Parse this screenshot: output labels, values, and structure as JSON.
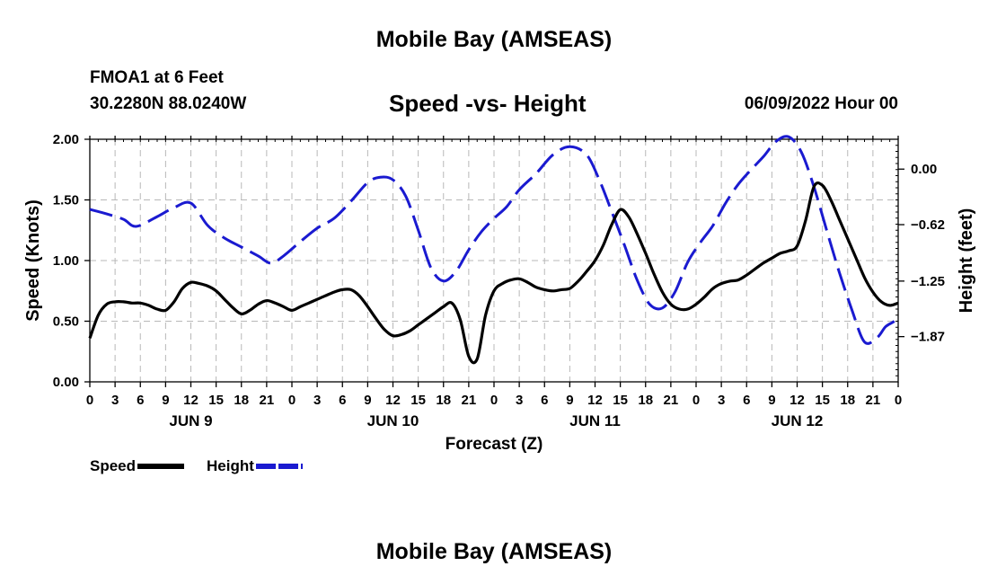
{
  "chart_data": {
    "type": "line",
    "title": "Speed -vs- Height",
    "page_title": "Mobile Bay (AMSEAS)",
    "bottom_title": "Mobile Bay (AMSEAS)",
    "station": "FMOA1 at 6 Feet",
    "coordinates": "30.2280N  88.0240W",
    "run_time": "06/09/2022 Hour 00",
    "xlabel": "Forecast (Z)",
    "ylabel": "Speed (Knots)",
    "ylabel_right": "Height (feet)",
    "x_range": [
      0,
      96
    ],
    "ylim": [
      0,
      2
    ],
    "ylim_right": [
      -2.375,
      0.3333
    ],
    "grid": true,
    "x_ticks": [
      0,
      3,
      6,
      9,
      12,
      15,
      18,
      21,
      24,
      27,
      30,
      33,
      36,
      39,
      42,
      45,
      48,
      51,
      54,
      57,
      60,
      63,
      66,
      69,
      72,
      75,
      78,
      81,
      84,
      87,
      90,
      93,
      96
    ],
    "x_tick_labels": [
      "0",
      "3",
      "6",
      "9",
      "12",
      "15",
      "18",
      "21",
      "0",
      "3",
      "6",
      "9",
      "12",
      "15",
      "18",
      "21",
      "0",
      "3",
      "6",
      "9",
      "12",
      "15",
      "18",
      "21",
      "0",
      "3",
      "6",
      "9",
      "12",
      "15",
      "18",
      "21",
      "0"
    ],
    "day_labels": [
      {
        "hour": 12,
        "label": "JUN 9"
      },
      {
        "hour": 36,
        "label": "JUN 10"
      },
      {
        "hour": 60,
        "label": "JUN 11"
      },
      {
        "hour": 84,
        "label": "JUN 12"
      }
    ],
    "y_ticks": [
      0,
      0.5,
      1,
      1.5,
      2
    ],
    "y_tick_labels": [
      "0.00",
      "0.50",
      "1.00",
      "1.50",
      "2.00"
    ],
    "y_right_ticks": [
      0,
      -0.62,
      -1.25,
      -1.87
    ],
    "y_right_tick_labels": [
      "0.00",
      "−0.62",
      "−1.25",
      "−1.87"
    ],
    "series": [
      {
        "name": "Speed",
        "axis": "left",
        "color": "#000000",
        "dash": "solid",
        "x": [
          0,
          1,
          2,
          3,
          4,
          5,
          6,
          7,
          8,
          9,
          10,
          11,
          12,
          13,
          14,
          15,
          16,
          17,
          18,
          19,
          20,
          21,
          22,
          23,
          24,
          25,
          26,
          27,
          28,
          29,
          30,
          31,
          32,
          33,
          34,
          35,
          36,
          37,
          38,
          39,
          40,
          41,
          42,
          43,
          44,
          45,
          46,
          47,
          48,
          49,
          50,
          51,
          52,
          53,
          54,
          55,
          56,
          57,
          58,
          59,
          60,
          61,
          62,
          63,
          64,
          65,
          66,
          67,
          68,
          69,
          70,
          71,
          72,
          73,
          74,
          75,
          76,
          77,
          78,
          79,
          80,
          81,
          82,
          83,
          84,
          85,
          86,
          87,
          88,
          89,
          90,
          91,
          92,
          93,
          94,
          95,
          96
        ],
        "values": [
          0.36,
          0.55,
          0.64,
          0.66,
          0.66,
          0.65,
          0.65,
          0.63,
          0.6,
          0.59,
          0.66,
          0.77,
          0.82,
          0.81,
          0.79,
          0.75,
          0.68,
          0.61,
          0.56,
          0.59,
          0.64,
          0.67,
          0.65,
          0.62,
          0.59,
          0.62,
          0.65,
          0.68,
          0.71,
          0.74,
          0.76,
          0.76,
          0.71,
          0.62,
          0.52,
          0.43,
          0.38,
          0.39,
          0.42,
          0.47,
          0.52,
          0.57,
          0.62,
          0.65,
          0.51,
          0.21,
          0.19,
          0.55,
          0.75,
          0.81,
          0.84,
          0.85,
          0.82,
          0.78,
          0.76,
          0.75,
          0.76,
          0.77,
          0.83,
          0.91,
          1.0,
          1.13,
          1.3,
          1.42,
          1.36,
          1.22,
          1.06,
          0.89,
          0.74,
          0.64,
          0.6,
          0.6,
          0.64,
          0.7,
          0.77,
          0.81,
          0.83,
          0.84,
          0.88,
          0.93,
          0.98,
          1.02,
          1.06,
          1.08,
          1.12,
          1.33,
          1.61,
          1.62,
          1.5,
          1.34,
          1.18,
          1.02,
          0.86,
          0.74,
          0.66,
          0.63,
          0.65
        ]
      },
      {
        "name": "Height",
        "axis": "right",
        "color": "#1a1ad0",
        "dash": "dashed",
        "x": [
          0,
          2,
          4,
          5.5,
          8,
          10,
          12,
          14,
          16,
          18,
          20,
          21.5,
          23,
          25,
          27,
          29,
          31,
          33,
          34.5,
          36,
          37.5,
          39,
          40.5,
          42,
          43.5,
          45,
          46.5,
          48,
          49.5,
          51,
          53,
          55,
          57,
          59,
          60.5,
          62,
          63.5,
          65,
          66.5,
          68,
          69.5,
          71,
          72.5,
          74,
          75.5,
          77,
          78.5,
          80,
          81.5,
          83,
          84.5,
          86,
          87.5,
          89,
          90.5,
          92,
          93.5,
          94.5,
          95.5,
          96
        ],
        "values": [
          -0.45,
          -0.5,
          -0.56,
          -0.64,
          -0.53,
          -0.43,
          -0.38,
          -0.63,
          -0.77,
          -0.87,
          -0.97,
          -1.05,
          -0.97,
          -0.81,
          -0.66,
          -0.55,
          -0.36,
          -0.15,
          -0.09,
          -0.12,
          -0.3,
          -0.68,
          -1.1,
          -1.25,
          -1.14,
          -0.9,
          -0.7,
          -0.55,
          -0.42,
          -0.23,
          -0.05,
          0.16,
          0.25,
          0.16,
          -0.12,
          -0.48,
          -0.85,
          -1.24,
          -1.51,
          -1.55,
          -1.37,
          -1.04,
          -0.82,
          -0.63,
          -0.38,
          -0.17,
          -0.01,
          0.14,
          0.31,
          0.36,
          0.19,
          -0.2,
          -0.68,
          -1.15,
          -1.57,
          -1.93,
          -1.88,
          -1.76,
          -1.7,
          -1.64
        ]
      }
    ]
  },
  "legend": {
    "speed_label": "Speed",
    "height_label": "Height"
  }
}
